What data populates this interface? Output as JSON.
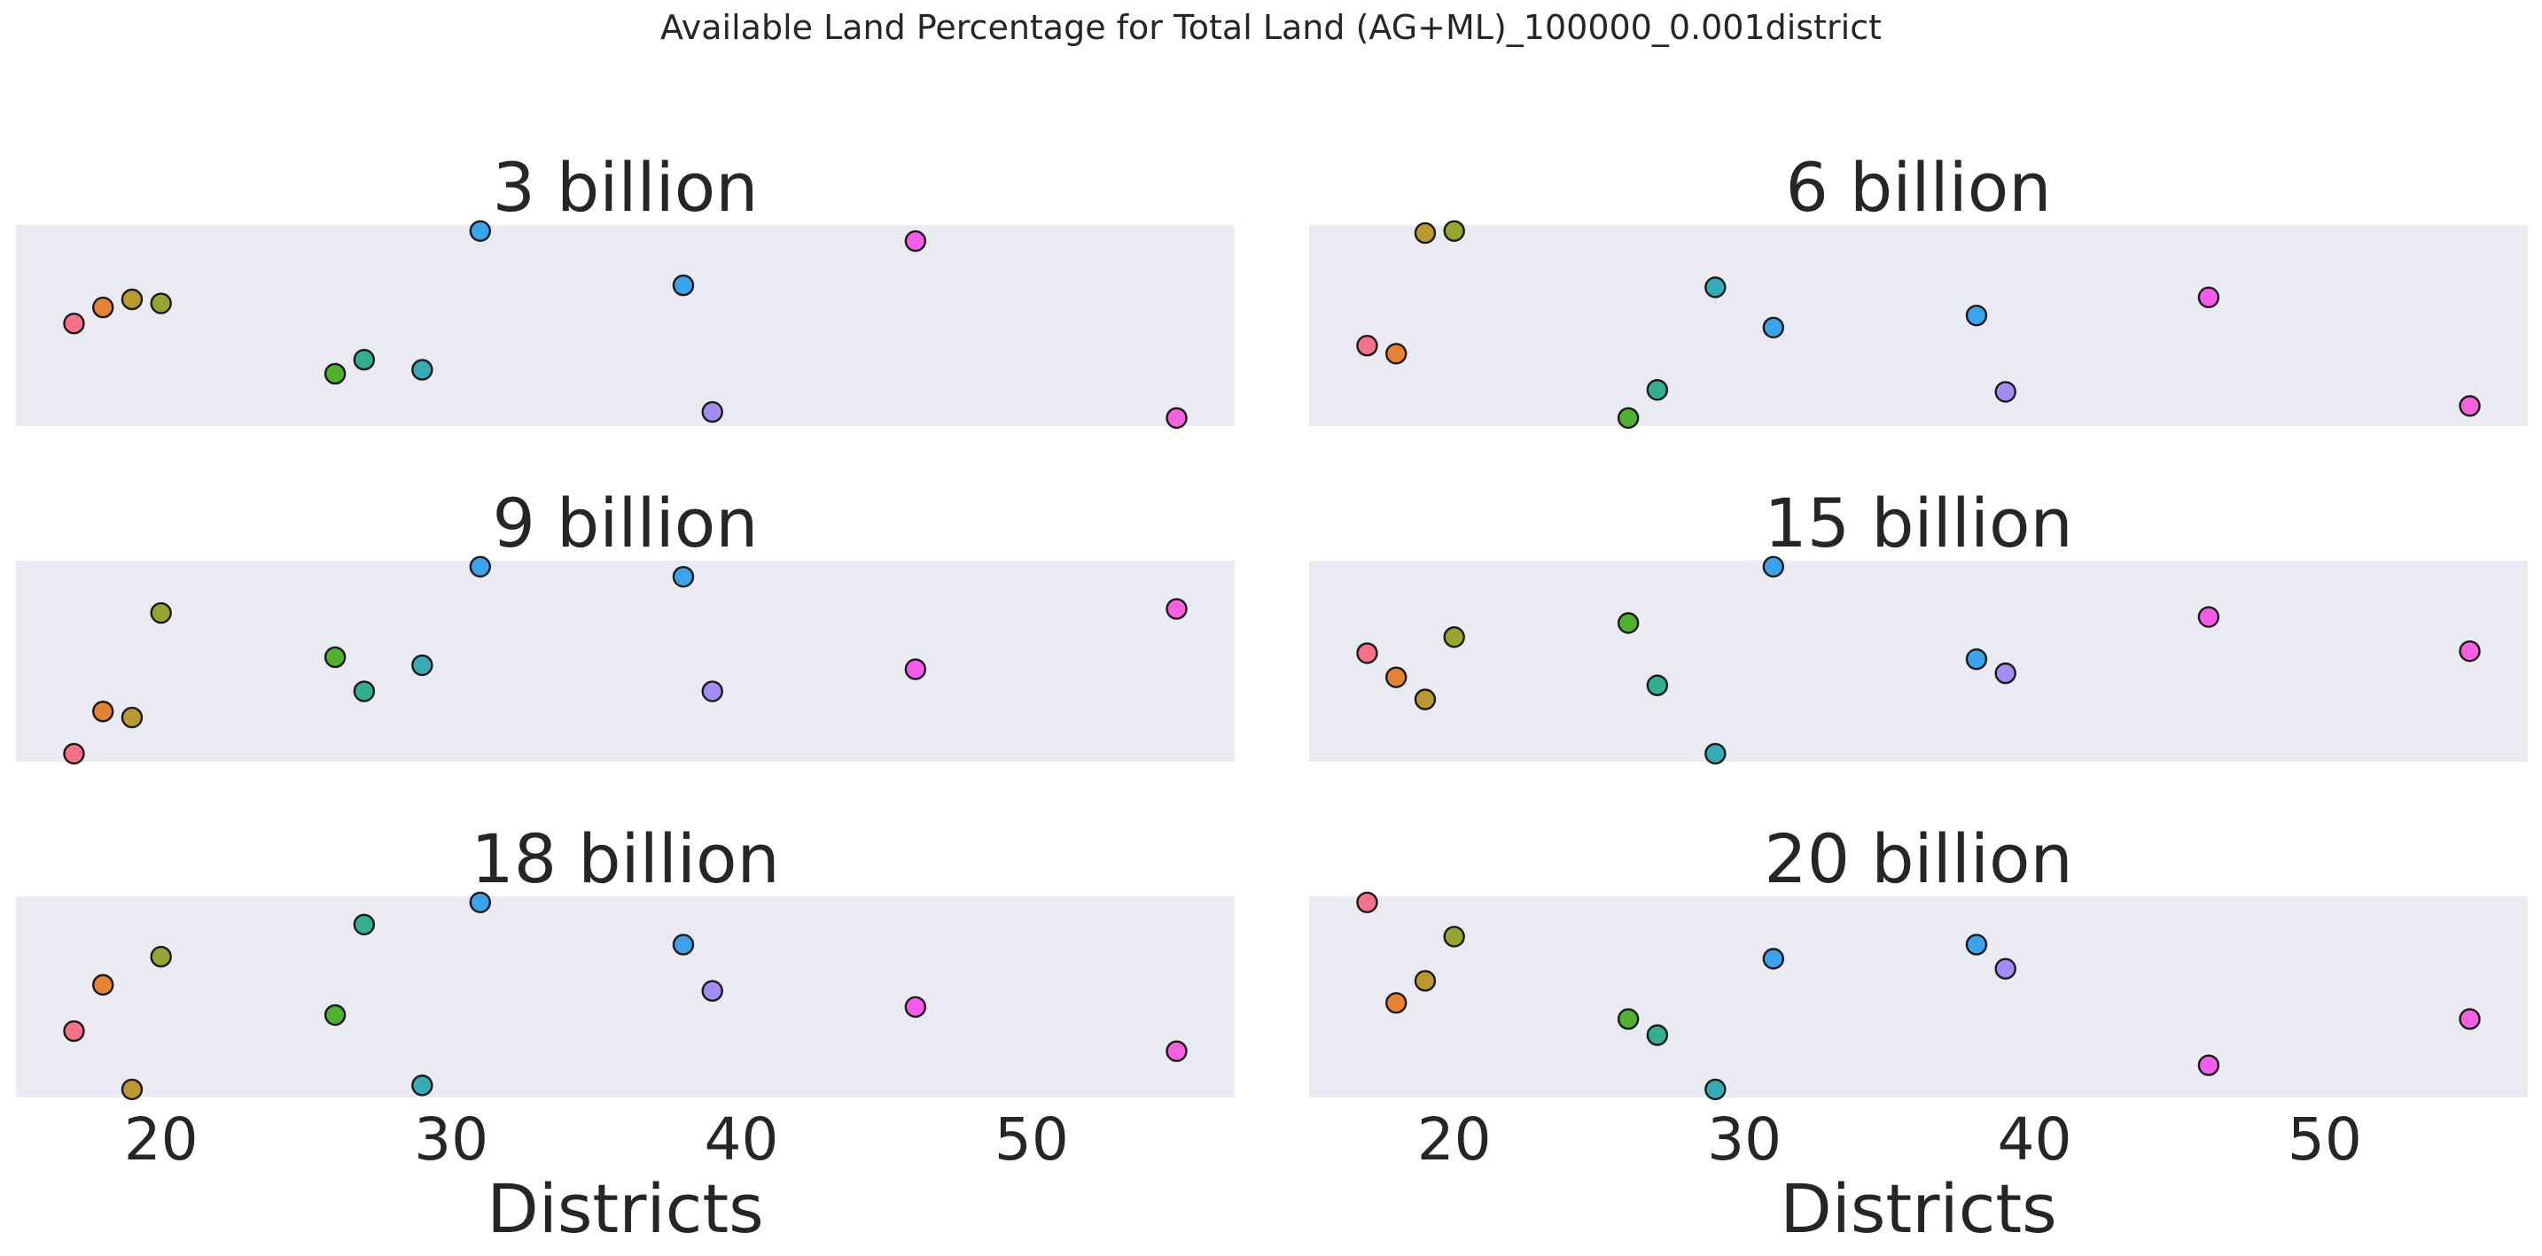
{
  "chart_data": {
    "type": "scatter",
    "title": "Available Land Percentage for Total Land (AG+ML)_100000_0.001district",
    "xlabel": "Districts",
    "xlim": [
      15,
      57
    ],
    "xticks": [
      20,
      30,
      40,
      50
    ],
    "ylim": [
      0,
      1
    ],
    "grid": false,
    "legend": "none",
    "district_colors": {
      "17": "#f77189",
      "18": "#e68332",
      "19": "#bb9832",
      "20": "#97a431",
      "26": "#50b131",
      "27": "#34ae91",
      "29": "#37abb5",
      "31": "#3ba3ec",
      "38": "#3ba3ec",
      "39": "#a48cf4",
      "46": "#f45deb",
      "55": "#f561dd"
    },
    "panels": [
      {
        "title": "3 billion",
        "points": [
          {
            "x": 17,
            "y": 0.51
          },
          {
            "x": 18,
            "y": 0.59
          },
          {
            "x": 19,
            "y": 0.63
          },
          {
            "x": 20,
            "y": 0.61
          },
          {
            "x": 26,
            "y": 0.26
          },
          {
            "x": 27,
            "y": 0.33
          },
          {
            "x": 29,
            "y": 0.28
          },
          {
            "x": 31,
            "y": 0.97
          },
          {
            "x": 38,
            "y": 0.7
          },
          {
            "x": 39,
            "y": 0.07
          },
          {
            "x": 46,
            "y": 0.92
          },
          {
            "x": 55,
            "y": 0.04
          }
        ]
      },
      {
        "title": "6 billion",
        "points": [
          {
            "x": 17,
            "y": 0.4
          },
          {
            "x": 18,
            "y": 0.36
          },
          {
            "x": 19,
            "y": 0.96
          },
          {
            "x": 20,
            "y": 0.97
          },
          {
            "x": 26,
            "y": 0.04
          },
          {
            "x": 27,
            "y": 0.18
          },
          {
            "x": 29,
            "y": 0.69
          },
          {
            "x": 31,
            "y": 0.49
          },
          {
            "x": 38,
            "y": 0.55
          },
          {
            "x": 39,
            "y": 0.17
          },
          {
            "x": 46,
            "y": 0.64
          },
          {
            "x": 55,
            "y": 0.1
          }
        ]
      },
      {
        "title": "9 billion",
        "points": [
          {
            "x": 17,
            "y": 0.04
          },
          {
            "x": 18,
            "y": 0.25
          },
          {
            "x": 19,
            "y": 0.22
          },
          {
            "x": 20,
            "y": 0.74
          },
          {
            "x": 26,
            "y": 0.52
          },
          {
            "x": 27,
            "y": 0.35
          },
          {
            "x": 29,
            "y": 0.48
          },
          {
            "x": 31,
            "y": 0.97
          },
          {
            "x": 38,
            "y": 0.92
          },
          {
            "x": 39,
            "y": 0.35
          },
          {
            "x": 46,
            "y": 0.46
          },
          {
            "x": 55,
            "y": 0.76
          }
        ]
      },
      {
        "title": "15 billion",
        "points": [
          {
            "x": 17,
            "y": 0.54
          },
          {
            "x": 18,
            "y": 0.42
          },
          {
            "x": 19,
            "y": 0.31
          },
          {
            "x": 20,
            "y": 0.62
          },
          {
            "x": 26,
            "y": 0.69
          },
          {
            "x": 27,
            "y": 0.38
          },
          {
            "x": 29,
            "y": 0.04
          },
          {
            "x": 31,
            "y": 0.97
          },
          {
            "x": 38,
            "y": 0.51
          },
          {
            "x": 39,
            "y": 0.44
          },
          {
            "x": 46,
            "y": 0.72
          },
          {
            "x": 55,
            "y": 0.55
          }
        ]
      },
      {
        "title": "18 billion",
        "points": [
          {
            "x": 17,
            "y": 0.33
          },
          {
            "x": 18,
            "y": 0.56
          },
          {
            "x": 19,
            "y": 0.04
          },
          {
            "x": 20,
            "y": 0.7
          },
          {
            "x": 26,
            "y": 0.41
          },
          {
            "x": 27,
            "y": 0.86
          },
          {
            "x": 29,
            "y": 0.06
          },
          {
            "x": 31,
            "y": 0.97
          },
          {
            "x": 38,
            "y": 0.76
          },
          {
            "x": 39,
            "y": 0.53
          },
          {
            "x": 46,
            "y": 0.45
          },
          {
            "x": 55,
            "y": 0.23
          }
        ]
      },
      {
        "title": "20 billion",
        "points": [
          {
            "x": 17,
            "y": 0.97
          },
          {
            "x": 18,
            "y": 0.47
          },
          {
            "x": 19,
            "y": 0.58
          },
          {
            "x": 20,
            "y": 0.8
          },
          {
            "x": 26,
            "y": 0.39
          },
          {
            "x": 27,
            "y": 0.31
          },
          {
            "x": 29,
            "y": 0.04
          },
          {
            "x": 31,
            "y": 0.69
          },
          {
            "x": 38,
            "y": 0.76
          },
          {
            "x": 39,
            "y": 0.64
          },
          {
            "x": 46,
            "y": 0.16
          },
          {
            "x": 55,
            "y": 0.39
          }
        ]
      }
    ]
  }
}
